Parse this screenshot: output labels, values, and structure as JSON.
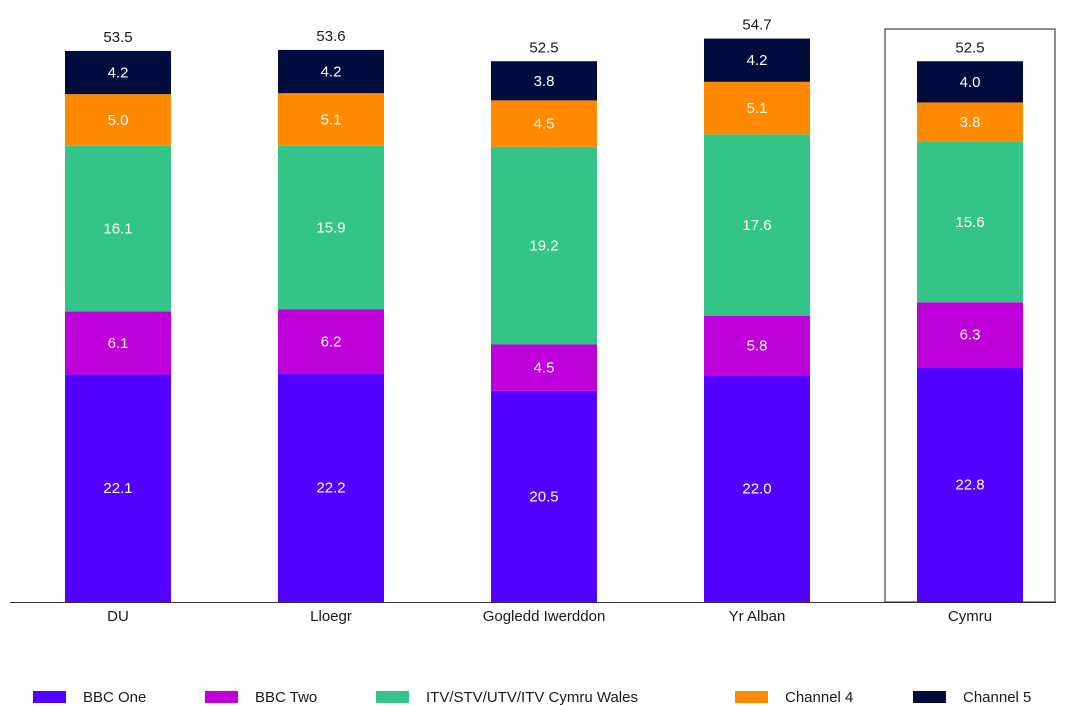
{
  "chart_data": {
    "type": "bar",
    "stacked": true,
    "categories": [
      "DU",
      "Lloegr",
      "Gogledd Iwerddon",
      "Yr Alban",
      "Cymru"
    ],
    "series": [
      {
        "name": "BBC One",
        "color": "#5200FF",
        "values": [
          22.1,
          22.2,
          20.5,
          22.0,
          22.8
        ]
      },
      {
        "name": "BBC Two",
        "color": "#C000DB",
        "values": [
          6.1,
          6.2,
          4.5,
          5.8,
          6.3
        ]
      },
      {
        "name": "ITV/STV/UTV/ITV Cymru Wales",
        "color": "#35C487",
        "values": [
          16.1,
          15.9,
          19.2,
          17.6,
          15.6
        ]
      },
      {
        "name": "Channel 4",
        "color": "#FF8A00",
        "values": [
          5.0,
          5.1,
          4.5,
          5.1,
          3.8
        ]
      },
      {
        "name": "Channel 5",
        "color": "#000C3E",
        "values": [
          4.2,
          4.2,
          3.8,
          4.2,
          4.0
        ]
      }
    ],
    "totals": [
      "53.5",
      "53.6",
      "52.5",
      "54.7",
      "52.5"
    ],
    "highlighted_category": "Cymru",
    "legend_position": "bottom",
    "grid": false,
    "title": "",
    "xlabel": "",
    "ylabel": "",
    "ylim": [
      0,
      55
    ]
  }
}
